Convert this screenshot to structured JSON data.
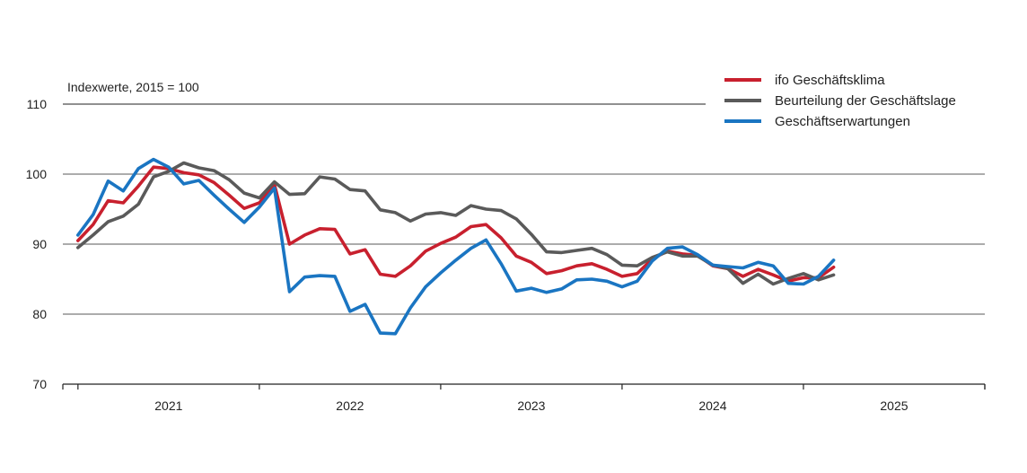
{
  "chart_data": {
    "type": "line",
    "note": "Indexwerte, 2015 = 100",
    "ylim": [
      70,
      110
    ],
    "yticks": [
      70,
      80,
      90,
      100,
      110
    ],
    "ytick_labels": [
      "70",
      "80",
      "90",
      "100",
      "110"
    ],
    "x_start": "2020-12",
    "x_end": "2026-01",
    "year_labels": [
      "2021",
      "2022",
      "2023",
      "2024",
      "2025"
    ],
    "grid": "horizontal",
    "legend_position": "top-right",
    "x": [
      "2021-01",
      "2021-02",
      "2021-03",
      "2021-04",
      "2021-05",
      "2021-06",
      "2021-07",
      "2021-08",
      "2021-09",
      "2021-10",
      "2021-11",
      "2021-12",
      "2022-01",
      "2022-02",
      "2022-03",
      "2022-04",
      "2022-05",
      "2022-06",
      "2022-07",
      "2022-08",
      "2022-09",
      "2022-10",
      "2022-11",
      "2022-12",
      "2023-01",
      "2023-02",
      "2023-03",
      "2023-04",
      "2023-05",
      "2023-06",
      "2023-07",
      "2023-08",
      "2023-09",
      "2023-10",
      "2023-11",
      "2023-12",
      "2024-01",
      "2024-02",
      "2024-03",
      "2024-04",
      "2024-05",
      "2024-06",
      "2024-07",
      "2024-08",
      "2024-09",
      "2024-10",
      "2024-11",
      "2024-12",
      "2025-01",
      "2025-02",
      "2025-03"
    ],
    "series": [
      {
        "name": "ifo Geschäftsklima",
        "color": "#c8202e",
        "values": [
          90.5,
          92.8,
          96.2,
          95.9,
          98.3,
          101.0,
          100.8,
          100.2,
          99.9,
          98.8,
          97.0,
          95.1,
          95.9,
          98.5,
          90.0,
          91.3,
          92.2,
          92.1,
          88.6,
          89.2,
          85.7,
          85.4,
          86.9,
          89.0,
          90.1,
          91.0,
          92.5,
          92.8,
          90.9,
          88.3,
          87.4,
          85.8,
          86.2,
          86.9,
          87.2,
          86.4,
          85.4,
          85.8,
          87.9,
          89.0,
          88.6,
          88.4,
          86.9,
          86.5,
          85.4,
          86.4,
          85.6,
          84.7,
          85.2,
          85.2,
          86.7
        ]
      },
      {
        "name": "Beurteilung der Geschäftslage",
        "color": "#5a5a5a",
        "values": [
          89.5,
          91.3,
          93.2,
          94.0,
          95.7,
          99.6,
          100.4,
          101.6,
          100.9,
          100.5,
          99.2,
          97.3,
          96.6,
          98.9,
          97.1,
          97.2,
          99.6,
          99.3,
          97.8,
          97.6,
          94.9,
          94.5,
          93.3,
          94.3,
          94.5,
          94.1,
          95.5,
          95.0,
          94.8,
          93.6,
          91.4,
          88.9,
          88.8,
          89.1,
          89.4,
          88.5,
          87.0,
          86.9,
          88.1,
          88.9,
          88.3,
          88.3,
          87.0,
          86.5,
          84.4,
          85.7,
          84.3,
          85.1,
          85.8,
          84.9,
          85.6
        ]
      },
      {
        "name": "Geschäftserwartungen",
        "color": "#1a75c2",
        "values": [
          91.3,
          94.2,
          99.0,
          97.6,
          100.8,
          102.1,
          101.0,
          98.6,
          99.1,
          97.0,
          95.0,
          93.1,
          95.3,
          98.0,
          83.2,
          85.3,
          85.5,
          85.4,
          80.4,
          81.4,
          77.3,
          77.2,
          80.9,
          83.9,
          85.9,
          87.7,
          89.4,
          90.6,
          87.2,
          83.3,
          83.7,
          83.1,
          83.6,
          84.9,
          85.0,
          84.7,
          83.9,
          84.7,
          87.6,
          89.4,
          89.6,
          88.5,
          87.0,
          86.8,
          86.6,
          87.4,
          86.9,
          84.4,
          84.3,
          85.4,
          87.7
        ]
      }
    ]
  }
}
